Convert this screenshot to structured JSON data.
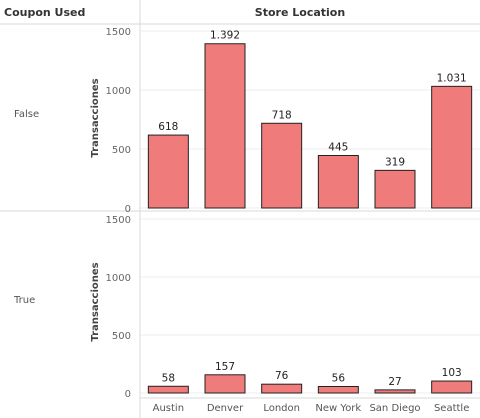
{
  "headers": {
    "row_dimension": "Coupon Used",
    "column_dimension": "Store Location"
  },
  "colors": {
    "bar_fill": "#f07b7b",
    "bar_stroke": "#222222",
    "gridline": "#eeeeee",
    "divider": "#d8d8d8"
  },
  "chart_data": {
    "type": "bar",
    "categories": [
      "Austin",
      "Denver",
      "London",
      "New York",
      "San Diego",
      "Seattle"
    ],
    "ylabel": "Transacciones",
    "ylim": [
      0,
      1600
    ],
    "yticks": [
      {
        "value": 0,
        "label": "0"
      },
      {
        "value": 500,
        "label": "500"
      },
      {
        "value": 1000,
        "label": "1000"
      },
      {
        "value": 1500,
        "label": "1500"
      }
    ],
    "grid": true,
    "panels": [
      {
        "row_label": "False",
        "values": [
          618,
          1392,
          718,
          445,
          319,
          1031
        ],
        "value_labels": [
          "618",
          "1.392",
          "718",
          "445",
          "319",
          "1.031"
        ]
      },
      {
        "row_label": "True",
        "values": [
          58,
          157,
          76,
          56,
          27,
          103
        ],
        "value_labels": [
          "58",
          "157",
          "76",
          "56",
          "27",
          "103"
        ]
      }
    ]
  }
}
